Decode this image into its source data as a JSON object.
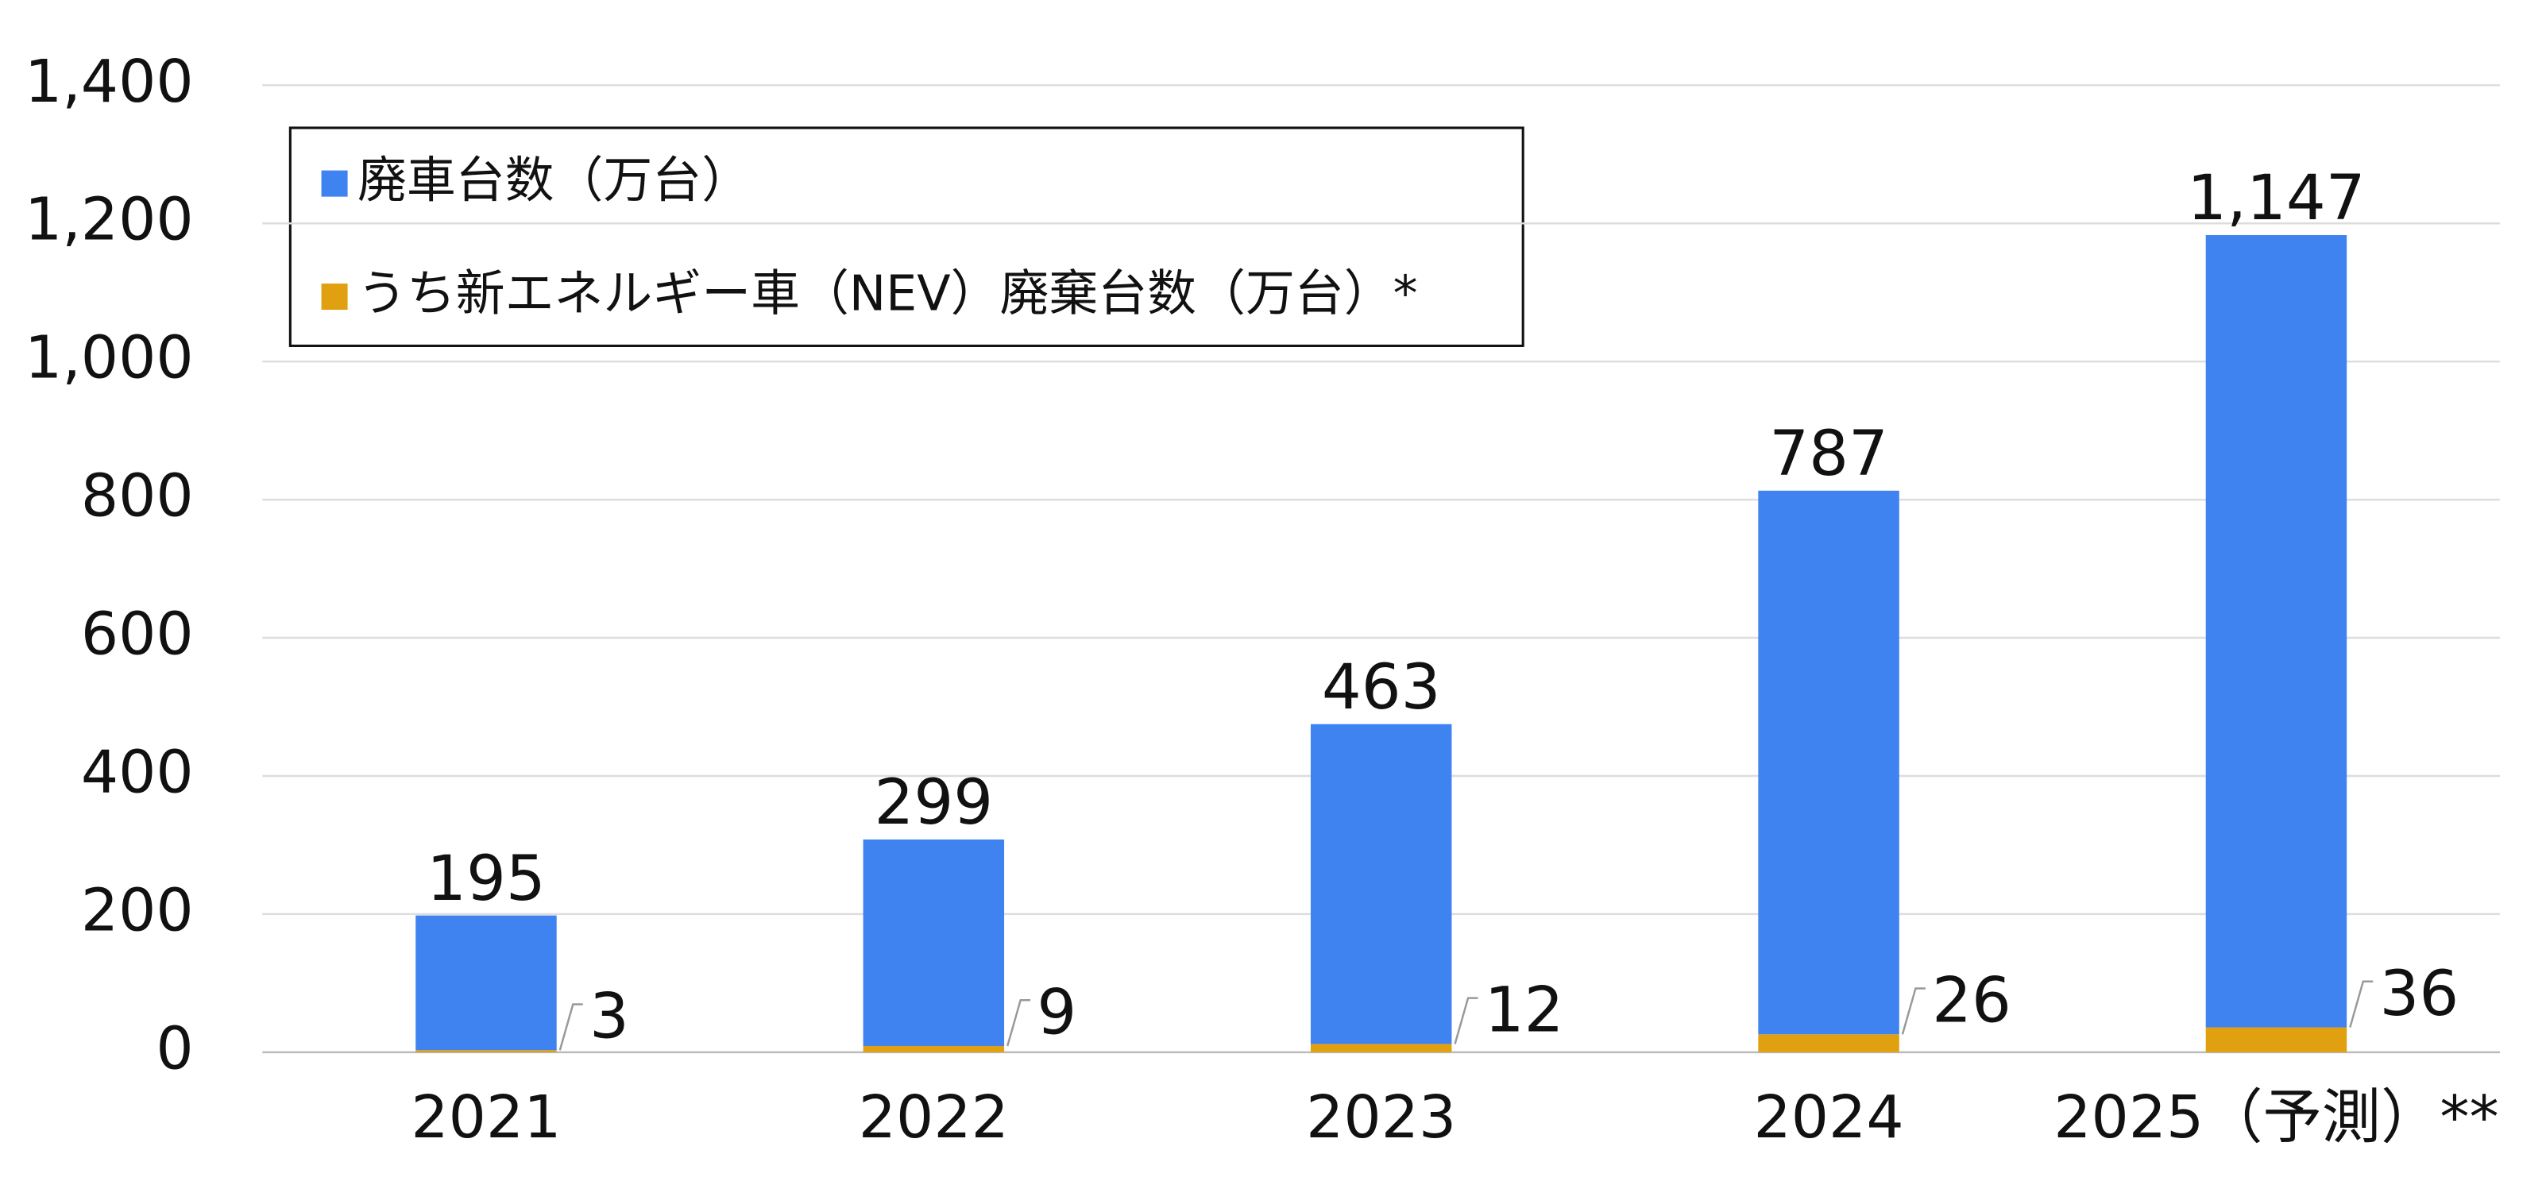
{
  "chart_data": {
    "type": "bar",
    "stacked": true,
    "categories": [
      "2021",
      "2022",
      "2023",
      "2024",
      "2025（予測）**"
    ],
    "series": [
      {
        "name": "廃車台数（万台）",
        "color": "#3f83f0",
        "values": [
          195,
          299,
          463,
          787,
          1147
        ]
      },
      {
        "name": "うち新エネルギー車（NEV）廃棄台数（万台）*",
        "color": "#e0a010",
        "values": [
          3,
          9,
          12,
          26,
          36
        ]
      }
    ],
    "ylim": [
      0,
      1400
    ],
    "yticks": [
      0,
      200,
      400,
      600,
      800,
      {
        "value": 1000,
        "label": "1,000"
      },
      {
        "value": 1200,
        "label": "1,200"
      },
      {
        "value": 1400,
        "label": "1,400"
      }
    ],
    "value_labels": [
      [
        "195",
        "299",
        "463",
        "787",
        "1,147"
      ],
      [
        "3",
        "9",
        "12",
        "26",
        "36"
      ]
    ],
    "grid": true,
    "legend": "upper left"
  }
}
